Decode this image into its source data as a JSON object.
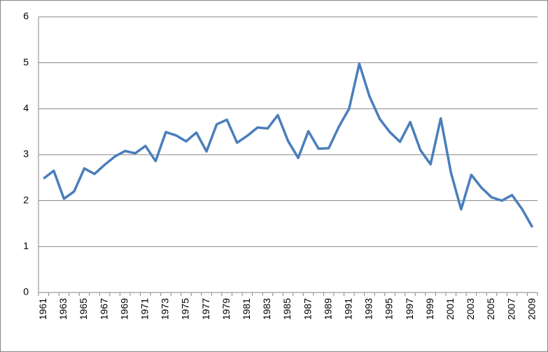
{
  "chart_data": {
    "type": "line",
    "categories": [
      "1961",
      null,
      "1963",
      null,
      "1965",
      null,
      "1967",
      null,
      "1969",
      null,
      "1971",
      null,
      "1973",
      null,
      "1975",
      null,
      "1977",
      null,
      "1979",
      null,
      "1981",
      null,
      "1983",
      null,
      "1985",
      null,
      "1987",
      null,
      "1989",
      null,
      "1991",
      null,
      "1993",
      null,
      "1995",
      null,
      "1997",
      null,
      "1999",
      null,
      "2001",
      null,
      "2003",
      null,
      "2005",
      null,
      "2007",
      null,
      "2009"
    ],
    "values": [
      2.48,
      2.65,
      2.04,
      2.2,
      2.7,
      2.58,
      2.78,
      2.96,
      3.08,
      3.03,
      3.19,
      2.86,
      3.49,
      3.42,
      3.29,
      3.48,
      3.07,
      3.66,
      3.76,
      3.26,
      3.41,
      3.59,
      3.57,
      3.86,
      3.3,
      2.93,
      3.51,
      3.13,
      3.14,
      3.61,
      4.0,
      4.98,
      4.27,
      3.78,
      3.49,
      3.28,
      3.71,
      3.1,
      2.79,
      3.79,
      2.61,
      1.81,
      2.56,
      2.28,
      2.07,
      2.0,
      2.12,
      1.81,
      1.42
    ],
    "color": "#4a7ebb",
    "ylim": [
      0,
      6
    ],
    "yticks": [
      0,
      1,
      2,
      3,
      4,
      5,
      6
    ],
    "grid": true
  }
}
